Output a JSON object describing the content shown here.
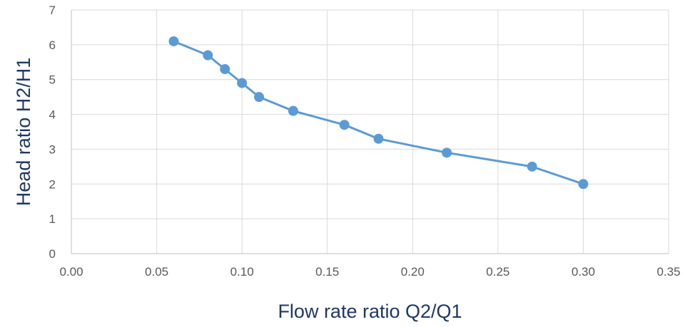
{
  "chart_data": {
    "type": "line",
    "title": "",
    "xlabel": "Flow rate ratio Q2/Q1",
    "ylabel": "Head ratio H2/H1",
    "xlim": [
      0,
      0.35
    ],
    "ylim": [
      0,
      7
    ],
    "x_ticks": [
      "0.00",
      "0.05",
      "0.10",
      "0.15",
      "0.20",
      "0.25",
      "0.30",
      "0.35"
    ],
    "y_ticks": [
      "0",
      "1",
      "2",
      "3",
      "4",
      "5",
      "6",
      "7"
    ],
    "grid": true,
    "legend": "none",
    "series": [
      {
        "color": "#5b9bd5",
        "x": [
          0.06,
          0.08,
          0.09,
          0.1,
          0.11,
          0.13,
          0.16,
          0.18,
          0.22,
          0.27,
          0.3
        ],
        "y": [
          6.1,
          5.7,
          5.3,
          4.9,
          4.5,
          4.1,
          3.7,
          3.3,
          2.9,
          2.5,
          2.0
        ]
      }
    ]
  }
}
